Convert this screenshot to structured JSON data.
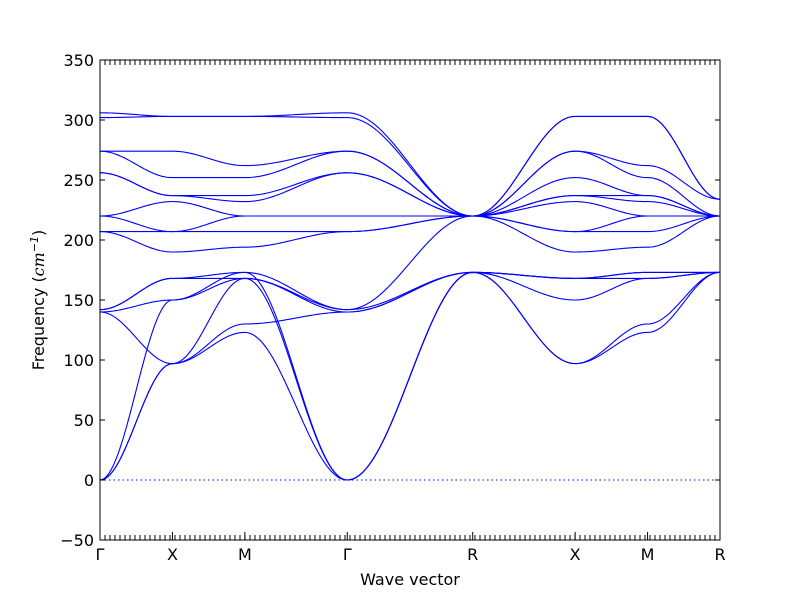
{
  "chart_data": {
    "type": "line",
    "xlabel": "Wave vector",
    "ylabel_main": "Frequency (",
    "ylabel_unit": "cm",
    "ylabel_exp": "−1",
    "ylabel_close": ")",
    "ylim": [
      -50,
      350
    ],
    "yticks": [
      -50,
      0,
      50,
      100,
      150,
      200,
      250,
      300,
      350
    ],
    "ytick_labels": [
      "−50",
      "0",
      "50",
      "100",
      "150",
      "200",
      "250",
      "300",
      "350"
    ],
    "path_points": [
      {
        "label": "Γ",
        "x": 0.0
      },
      {
        "label": "X",
        "x": 0.5
      },
      {
        "label": "M",
        "x": 1.0
      },
      {
        "label": "Γ",
        "x": 1.7071
      },
      {
        "label": "R",
        "x": 2.5731
      },
      {
        "label": "X",
        "x": 3.2802
      },
      {
        "label": "M",
        "x": 3.7802
      },
      {
        "label": "R",
        "x": 4.2802
      }
    ],
    "xlim": [
      0,
      4.2802
    ],
    "line_color": "#0000ff",
    "zero_line": true,
    "series": [
      {
        "values": [
          [
            0.0,
            0
          ],
          [
            0.5,
            97
          ],
          [
            1.0,
            123
          ],
          [
            1.7071,
            0
          ],
          [
            2.5731,
            173
          ],
          [
            3.2802,
            97
          ],
          [
            3.7802,
            123
          ],
          [
            4.2802,
            173
          ]
        ]
      },
      {
        "values": [
          [
            0.0,
            0
          ],
          [
            0.5,
            97
          ],
          [
            1.0,
            168
          ],
          [
            1.7071,
            0
          ],
          [
            2.5731,
            173
          ],
          [
            3.2802,
            97
          ],
          [
            3.7802,
            130
          ],
          [
            4.2802,
            173
          ]
        ]
      },
      {
        "values": [
          [
            0.0,
            0
          ],
          [
            0.5,
            150
          ],
          [
            1.0,
            173
          ],
          [
            1.7071,
            0
          ],
          [
            2.5731,
            173
          ],
          [
            3.2802,
            150
          ],
          [
            3.7802,
            168
          ],
          [
            4.2802,
            173
          ]
        ]
      },
      {
        "values": [
          [
            0.0,
            140
          ],
          [
            0.5,
            97
          ],
          [
            1.0,
            130
          ],
          [
            1.7071,
            140
          ],
          [
            2.5731,
            173
          ],
          [
            3.2802,
            168
          ],
          [
            3.7802,
            168
          ],
          [
            4.2802,
            173
          ]
        ]
      },
      {
        "values": [
          [
            0.0,
            140
          ],
          [
            0.5,
            150
          ],
          [
            1.0,
            168
          ],
          [
            1.7071,
            140
          ],
          [
            2.5731,
            173
          ],
          [
            3.2802,
            168
          ],
          [
            3.7802,
            173
          ],
          [
            4.2802,
            173
          ]
        ]
      },
      {
        "values": [
          [
            0.0,
            142
          ],
          [
            0.5,
            168
          ],
          [
            1.0,
            173
          ],
          [
            1.7071,
            142
          ],
          [
            2.5731,
            173
          ],
          [
            3.2802,
            168
          ],
          [
            3.7802,
            173
          ],
          [
            4.2802,
            173
          ]
        ]
      },
      {
        "values": [
          [
            0.0,
            142
          ],
          [
            0.5,
            168
          ],
          [
            1.0,
            168
          ],
          [
            1.7071,
            142
          ],
          [
            2.5731,
            220
          ],
          [
            3.2802,
            190
          ],
          [
            3.7802,
            194
          ],
          [
            4.2802,
            220
          ]
        ]
      },
      {
        "values": [
          [
            0.0,
            207
          ],
          [
            0.5,
            190
          ],
          [
            1.0,
            194
          ],
          [
            1.7071,
            207
          ],
          [
            2.5731,
            220
          ],
          [
            3.2802,
            207
          ],
          [
            3.7802,
            207
          ],
          [
            4.2802,
            220
          ]
        ]
      },
      {
        "values": [
          [
            0.0,
            207
          ],
          [
            0.5,
            207
          ],
          [
            1.0,
            207
          ],
          [
            1.7071,
            207
          ],
          [
            2.5731,
            220
          ],
          [
            3.2802,
            207
          ],
          [
            3.7802,
            220
          ],
          [
            4.2802,
            220
          ]
        ]
      },
      {
        "values": [
          [
            0.0,
            220
          ],
          [
            0.5,
            207
          ],
          [
            1.0,
            220
          ],
          [
            1.7071,
            220
          ],
          [
            2.5731,
            220
          ],
          [
            3.2802,
            232
          ],
          [
            3.7802,
            220
          ],
          [
            4.2802,
            220
          ]
        ]
      },
      {
        "values": [
          [
            0.0,
            220
          ],
          [
            0.5,
            232
          ],
          [
            1.0,
            220
          ],
          [
            1.7071,
            220
          ],
          [
            2.5731,
            220
          ],
          [
            3.2802,
            237
          ],
          [
            3.7802,
            232
          ],
          [
            4.2802,
            220
          ]
        ]
      },
      {
        "values": [
          [
            0.0,
            256
          ],
          [
            0.5,
            237
          ],
          [
            1.0,
            232
          ],
          [
            1.7071,
            256
          ],
          [
            2.5731,
            220
          ],
          [
            3.2802,
            237
          ],
          [
            3.7802,
            237
          ],
          [
            4.2802,
            220
          ]
        ]
      },
      {
        "values": [
          [
            0.0,
            256
          ],
          [
            0.5,
            237
          ],
          [
            1.0,
            237
          ],
          [
            1.7071,
            256
          ],
          [
            2.5731,
            220
          ],
          [
            3.2802,
            252
          ],
          [
            3.7802,
            237
          ],
          [
            4.2802,
            220
          ]
        ]
      },
      {
        "values": [
          [
            0.0,
            274
          ],
          [
            0.5,
            252
          ],
          [
            1.0,
            252
          ],
          [
            1.7071,
            274
          ],
          [
            2.5731,
            220
          ],
          [
            3.2802,
            274
          ],
          [
            3.7802,
            252
          ],
          [
            4.2802,
            220
          ]
        ]
      },
      {
        "values": [
          [
            0.0,
            274
          ],
          [
            0.5,
            274
          ],
          [
            1.0,
            262
          ],
          [
            1.7071,
            274
          ],
          [
            2.5731,
            220
          ],
          [
            3.2802,
            274
          ],
          [
            3.7802,
            262
          ],
          [
            4.2802,
            234
          ]
        ]
      },
      {
        "values": [
          [
            0.0,
            302
          ],
          [
            0.5,
            303
          ],
          [
            1.0,
            303
          ],
          [
            1.7071,
            302
          ],
          [
            2.5731,
            220
          ],
          [
            3.2802,
            303
          ],
          [
            3.7802,
            303
          ],
          [
            4.2802,
            234
          ]
        ]
      },
      {
        "values": [
          [
            0.0,
            306
          ],
          [
            0.5,
            303
          ],
          [
            1.0,
            303
          ],
          [
            1.7071,
            306
          ],
          [
            2.5731,
            220
          ],
          [
            3.2802,
            303
          ],
          [
            3.7802,
            303
          ],
          [
            4.2802,
            234
          ]
        ]
      }
    ]
  }
}
